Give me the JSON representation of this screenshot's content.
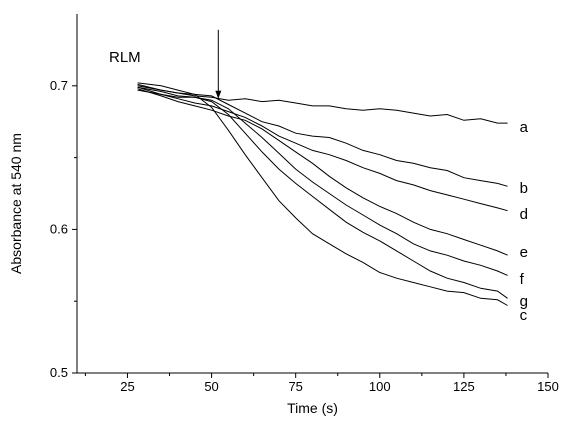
{
  "chart_data": {
    "type": "line",
    "title": "",
    "xlabel": "Time (s)",
    "ylabel": "Absorbance at 540 nm",
    "xlim": [
      10,
      150
    ],
    "ylim": [
      0.5,
      0.75
    ],
    "x_ticks": [
      25,
      50,
      75,
      100,
      125,
      150
    ],
    "x_tick_labels": [
      "25",
      "50",
      "75",
      "100",
      "125",
      "150"
    ],
    "y_ticks": [
      0.5,
      0.6,
      0.7
    ],
    "y_tick_labels": [
      "0.5",
      "0.6",
      "0.7"
    ],
    "grid": false,
    "line_color": "#000000",
    "annotation": {
      "text": "RLM",
      "arrow_x": 52,
      "arrow_y_start": 0.739,
      "arrow_y_end": 0.691
    },
    "series": [
      {
        "name": "a",
        "x": [
          28,
          35,
          40,
          45,
          50,
          55,
          60,
          65,
          70,
          75,
          80,
          85,
          90,
          95,
          100,
          105,
          110,
          115,
          120,
          125,
          130,
          135,
          138
        ],
        "y": [
          0.701,
          0.697,
          0.695,
          0.693,
          0.692,
          0.69,
          0.691,
          0.689,
          0.69,
          0.688,
          0.686,
          0.686,
          0.684,
          0.683,
          0.684,
          0.683,
          0.681,
          0.679,
          0.68,
          0.676,
          0.677,
          0.674,
          0.674
        ]
      },
      {
        "name": "b",
        "x": [
          28,
          35,
          40,
          45,
          50,
          55,
          60,
          65,
          70,
          75,
          80,
          85,
          90,
          95,
          100,
          105,
          110,
          115,
          120,
          125,
          130,
          135,
          138
        ],
        "y": [
          0.7,
          0.697,
          0.695,
          0.694,
          0.693,
          0.687,
          0.681,
          0.675,
          0.672,
          0.667,
          0.665,
          0.664,
          0.66,
          0.655,
          0.652,
          0.648,
          0.646,
          0.643,
          0.641,
          0.636,
          0.634,
          0.632,
          0.63
        ]
      },
      {
        "name": "d",
        "x": [
          28,
          35,
          40,
          45,
          50,
          55,
          60,
          65,
          70,
          75,
          80,
          85,
          90,
          95,
          100,
          105,
          110,
          115,
          120,
          125,
          130,
          135,
          138
        ],
        "y": [
          0.699,
          0.694,
          0.691,
          0.688,
          0.686,
          0.682,
          0.678,
          0.672,
          0.665,
          0.66,
          0.655,
          0.652,
          0.648,
          0.643,
          0.639,
          0.634,
          0.631,
          0.627,
          0.624,
          0.621,
          0.618,
          0.615,
          0.613
        ]
      },
      {
        "name": "e",
        "x": [
          28,
          35,
          40,
          45,
          50,
          55,
          60,
          65,
          70,
          75,
          80,
          85,
          90,
          95,
          100,
          105,
          110,
          115,
          120,
          125,
          130,
          135,
          138
        ],
        "y": [
          0.698,
          0.693,
          0.689,
          0.686,
          0.683,
          0.679,
          0.676,
          0.67,
          0.662,
          0.654,
          0.646,
          0.637,
          0.629,
          0.622,
          0.616,
          0.611,
          0.605,
          0.6,
          0.597,
          0.593,
          0.589,
          0.585,
          0.582
        ]
      },
      {
        "name": "f",
        "x": [
          28,
          35,
          40,
          45,
          50,
          55,
          60,
          65,
          70,
          75,
          80,
          85,
          90,
          95,
          100,
          105,
          110,
          115,
          120,
          125,
          130,
          135,
          138
        ],
        "y": [
          0.699,
          0.696,
          0.693,
          0.692,
          0.69,
          0.684,
          0.674,
          0.664,
          0.653,
          0.642,
          0.633,
          0.625,
          0.617,
          0.61,
          0.603,
          0.597,
          0.59,
          0.585,
          0.582,
          0.578,
          0.575,
          0.571,
          0.568
        ]
      },
      {
        "name": "g",
        "x": [
          28,
          35,
          40,
          45,
          50,
          55,
          60,
          65,
          70,
          75,
          80,
          85,
          90,
          95,
          100,
          105,
          110,
          115,
          120,
          125,
          130,
          135,
          138
        ],
        "y": [
          0.697,
          0.694,
          0.692,
          0.692,
          0.689,
          0.68,
          0.667,
          0.654,
          0.642,
          0.632,
          0.623,
          0.614,
          0.605,
          0.598,
          0.592,
          0.585,
          0.578,
          0.571,
          0.566,
          0.563,
          0.559,
          0.557,
          0.552
        ]
      },
      {
        "name": "c",
        "x": [
          28,
          35,
          40,
          45,
          50,
          55,
          60,
          65,
          70,
          75,
          80,
          85,
          90,
          95,
          100,
          105,
          110,
          115,
          120,
          125,
          130,
          135,
          138
        ],
        "y": [
          0.702,
          0.7,
          0.697,
          0.694,
          0.685,
          0.669,
          0.652,
          0.636,
          0.62,
          0.608,
          0.597,
          0.59,
          0.583,
          0.577,
          0.57,
          0.566,
          0.563,
          0.56,
          0.557,
          0.556,
          0.552,
          0.551,
          0.547
        ]
      }
    ]
  }
}
